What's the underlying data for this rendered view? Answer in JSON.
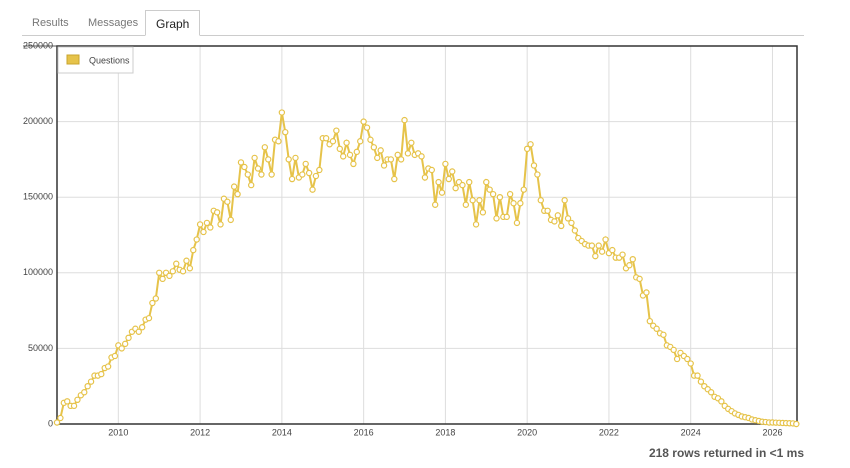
{
  "tabs": [
    "Results",
    "Messages",
    "Graph"
  ],
  "status": "218 rows returned in <1 ms",
  "chart_data": {
    "type": "line",
    "x": [
      2008.5,
      2008.583,
      2008.667,
      2008.75,
      2008.833,
      2008.917,
      2009.0,
      2009.083,
      2009.167,
      2009.25,
      2009.333,
      2009.417,
      2009.5,
      2009.583,
      2009.667,
      2009.75,
      2009.833,
      2009.917,
      2010.0,
      2010.083,
      2010.167,
      2010.25,
      2010.333,
      2010.417,
      2010.5,
      2010.583,
      2010.667,
      2010.75,
      2010.833,
      2010.917,
      2011.0,
      2011.083,
      2011.167,
      2011.25,
      2011.333,
      2011.417,
      2011.5,
      2011.583,
      2011.667,
      2011.75,
      2011.833,
      2011.917,
      2012.0,
      2012.083,
      2012.167,
      2012.25,
      2012.333,
      2012.417,
      2012.5,
      2012.583,
      2012.667,
      2012.75,
      2012.833,
      2012.917,
      2013.0,
      2013.083,
      2013.167,
      2013.25,
      2013.333,
      2013.417,
      2013.5,
      2013.583,
      2013.667,
      2013.75,
      2013.833,
      2013.917,
      2014.0,
      2014.083,
      2014.167,
      2014.25,
      2014.333,
      2014.417,
      2014.5,
      2014.583,
      2014.667,
      2014.75,
      2014.833,
      2014.917,
      2015.0,
      2015.083,
      2015.167,
      2015.25,
      2015.333,
      2015.417,
      2015.5,
      2015.583,
      2015.667,
      2015.75,
      2015.833,
      2015.917,
      2016.0,
      2016.083,
      2016.167,
      2016.25,
      2016.333,
      2016.417,
      2016.5,
      2016.583,
      2016.667,
      2016.75,
      2016.833,
      2016.917,
      2017.0,
      2017.083,
      2017.167,
      2017.25,
      2017.333,
      2017.417,
      2017.5,
      2017.583,
      2017.667,
      2017.75,
      2017.833,
      2017.917,
      2018.0,
      2018.083,
      2018.167,
      2018.25,
      2018.333,
      2018.417,
      2018.5,
      2018.583,
      2018.667,
      2018.75,
      2018.833,
      2018.917,
      2019.0,
      2019.083,
      2019.167,
      2019.25,
      2019.333,
      2019.417,
      2019.5,
      2019.583,
      2019.667,
      2019.75,
      2019.833,
      2019.917,
      2020.0,
      2020.083,
      2020.167,
      2020.25,
      2020.333,
      2020.417,
      2020.5,
      2020.583,
      2020.667,
      2020.75,
      2020.833,
      2020.917,
      2021.0,
      2021.083,
      2021.167,
      2021.25,
      2021.333,
      2021.417,
      2021.5,
      2021.583,
      2021.667,
      2021.75,
      2021.833,
      2021.917,
      2022.0,
      2022.083,
      2022.167,
      2022.25,
      2022.333,
      2022.417,
      2022.5,
      2022.583,
      2022.667,
      2022.75,
      2022.833,
      2022.917,
      2023.0,
      2023.083,
      2023.167,
      2023.25,
      2023.333,
      2023.417,
      2023.5,
      2023.583,
      2023.667,
      2023.75,
      2023.833,
      2023.917,
      2024.0,
      2024.083,
      2024.167,
      2024.25,
      2024.333,
      2024.417,
      2024.5,
      2024.583,
      2024.667,
      2024.75,
      2024.833,
      2024.917,
      2025.0,
      2025.083,
      2025.167,
      2025.25,
      2025.333,
      2025.417,
      2025.5,
      2025.583,
      2025.667,
      2025.75,
      2025.833,
      2025.917,
      2026.0,
      2026.083,
      2026.167,
      2026.25,
      2026.333,
      2026.417,
      2026.5,
      2026.583
    ],
    "series": [
      {
        "name": "Questions",
        "color": "#e6c34a",
        "values": [
          1000,
          4000,
          14000,
          15000,
          12000,
          12000,
          16000,
          19000,
          21000,
          25000,
          28000,
          32000,
          32000,
          33000,
          37000,
          38000,
          44000,
          45000,
          52000,
          50000,
          53000,
          57000,
          61000,
          63000,
          61000,
          64000,
          69000,
          70000,
          80000,
          83000,
          100000,
          96000,
          100000,
          98000,
          101000,
          106000,
          102000,
          101000,
          108000,
          103000,
          115000,
          122000,
          132000,
          127000,
          133000,
          130000,
          141000,
          140000,
          132000,
          149000,
          147000,
          135000,
          157000,
          152000,
          173000,
          170000,
          165000,
          158000,
          176000,
          169000,
          165000,
          183000,
          175000,
          165000,
          188000,
          187000,
          206000,
          193000,
          175000,
          162000,
          176000,
          163000,
          165000,
          172000,
          166000,
          155000,
          164000,
          168000,
          189000,
          189000,
          185000,
          187000,
          194000,
          182000,
          177000,
          186000,
          178000,
          172000,
          180000,
          187000,
          200000,
          196000,
          188000,
          183000,
          176000,
          181000,
          171000,
          175000,
          175000,
          162000,
          178000,
          175000,
          201000,
          179000,
          186000,
          178000,
          179000,
          177000,
          163000,
          169000,
          168000,
          145000,
          160000,
          153000,
          172000,
          162000,
          167000,
          156000,
          160000,
          158000,
          145000,
          160000,
          148000,
          132000,
          148000,
          140000,
          160000,
          155000,
          152000,
          136000,
          150000,
          137000,
          137000,
          152000,
          146000,
          133000,
          146000,
          155000,
          182000,
          185000,
          171000,
          165000,
          148000,
          141000,
          141000,
          135000,
          134000,
          138000,
          131000,
          148000,
          136000,
          133000,
          128000,
          123000,
          121000,
          119000,
          118000,
          118000,
          111000,
          118000,
          114000,
          122000,
          113000,
          115000,
          110000,
          110000,
          112000,
          103000,
          105000,
          109000,
          97000,
          96000,
          85000,
          87000,
          68000,
          65000,
          63000,
          60000,
          59000,
          52000,
          51000,
          49000,
          43000,
          47000,
          45000,
          43000,
          40000,
          32000,
          32000,
          28000,
          25000,
          23000,
          21000,
          18000,
          17000,
          15000,
          12000,
          10000,
          8500,
          7000,
          6000,
          5000,
          4500,
          4000,
          3000,
          2500,
          2000,
          1500,
          1300,
          1000,
          1000,
          900,
          800,
          700,
          600,
          500,
          400,
          0
        ]
      }
    ],
    "xlim": [
      2008.5,
      2026.6
    ],
    "ylim": [
      0,
      250000
    ],
    "xticks": [
      2010,
      2012,
      2014,
      2016,
      2018,
      2020,
      2022,
      2024,
      2026
    ],
    "yticks": [
      0,
      50000,
      100000,
      150000,
      200000,
      250000
    ],
    "grid": true,
    "legend": "upper left"
  }
}
